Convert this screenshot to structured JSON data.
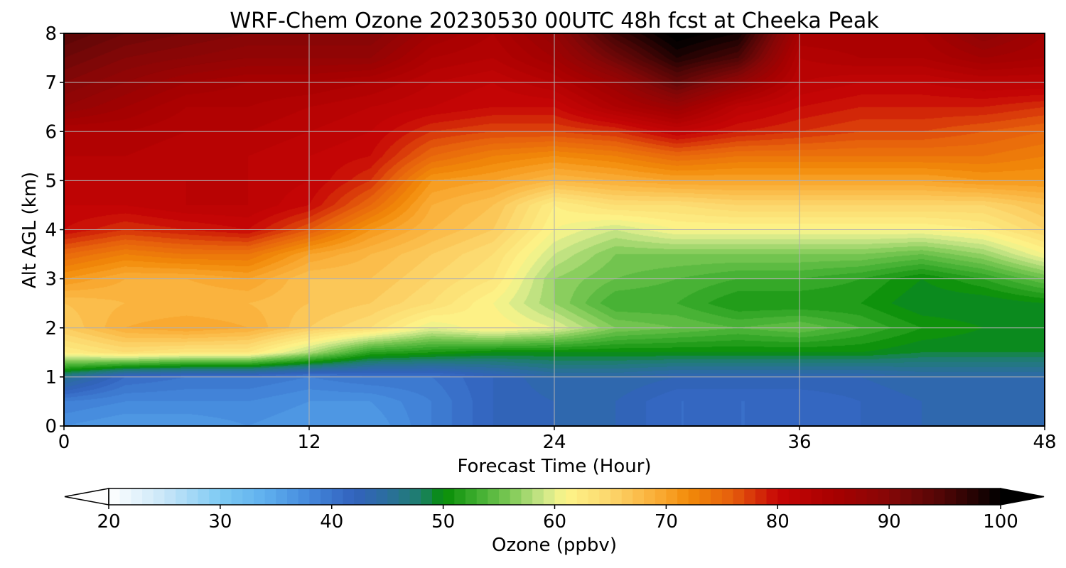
{
  "chart_data": {
    "type": "heatmap",
    "title": "WRF-Chem Ozone  20230530 00UTC 48h fcst at Cheeka Peak",
    "xlabel": "Forecast Time (Hour)",
    "ylabel": "Alt AGL (km)",
    "xlim": [
      0,
      48
    ],
    "ylim": [
      0,
      8
    ],
    "xticks": [
      0,
      12,
      24,
      36,
      48
    ],
    "yticks": [
      0,
      1,
      2,
      3,
      4,
      5,
      6,
      7,
      8
    ],
    "grid": true,
    "x_hours": [
      0,
      3,
      6,
      9,
      12,
      15,
      18,
      21,
      24,
      27,
      30,
      33,
      36,
      39,
      42,
      45,
      48
    ],
    "y_km": [
      0,
      0.5,
      1,
      1.5,
      2,
      2.5,
      3,
      3.5,
      4,
      4.5,
      5,
      5.5,
      6,
      6.5,
      7,
      7.5,
      8
    ],
    "z_rows_ppbv": [
      [
        37,
        36,
        36,
        37,
        36,
        36,
        39,
        42,
        43,
        43,
        41,
        41,
        41,
        42,
        43,
        43,
        43
      ],
      [
        39,
        38,
        38,
        38,
        37,
        37,
        39,
        42,
        43,
        43,
        41,
        41,
        41,
        42,
        43,
        43,
        43
      ],
      [
        46,
        41,
        40,
        40,
        39,
        40,
        40,
        42,
        44,
        44,
        43,
        43,
        43,
        43,
        44,
        44,
        44
      ],
      [
        62,
        64,
        63,
        63,
        58,
        52,
        51,
        50,
        50,
        50,
        50,
        50,
        50,
        50,
        49,
        49,
        49
      ],
      [
        66,
        69,
        70,
        69,
        66,
        64,
        60,
        62,
        60,
        56,
        55,
        54,
        55,
        53,
        51,
        50,
        50
      ],
      [
        67,
        68,
        68,
        68,
        67,
        66,
        64,
        61,
        57,
        53,
        53,
        51,
        51,
        51,
        49,
        49,
        50
      ],
      [
        71,
        69,
        69,
        70,
        67,
        67,
        65,
        63,
        57,
        55,
        54,
        53,
        53,
        52,
        50,
        52,
        55
      ],
      [
        75,
        73,
        74,
        74,
        70,
        68,
        66,
        64,
        59,
        56,
        56,
        56,
        56,
        56,
        55,
        57,
        61
      ],
      [
        80,
        78,
        79,
        80,
        76,
        71,
        68,
        66,
        61,
        59,
        61,
        61,
        61,
        61,
        61,
        62,
        65
      ],
      [
        81,
        81,
        82,
        82,
        80,
        75,
        69,
        67,
        62,
        64,
        64,
        65,
        65,
        65,
        65,
        65,
        67
      ],
      [
        82,
        82,
        82,
        82,
        81,
        78,
        71,
        70,
        68,
        69,
        70,
        70,
        70,
        70,
        70,
        71,
        71
      ],
      [
        83,
        83,
        82,
        82,
        81,
        80,
        75,
        73,
        72,
        73,
        75,
        74,
        74,
        74,
        74,
        74,
        73
      ],
      [
        84,
        84,
        83,
        83,
        82,
        81,
        78,
        77,
        77,
        78,
        81,
        79,
        78,
        77,
        77,
        76,
        75
      ],
      [
        88,
        86,
        84,
        84,
        83,
        82,
        81,
        80,
        80,
        84,
        87,
        82,
        80,
        79,
        79,
        79,
        78
      ],
      [
        90,
        88,
        86,
        85,
        85,
        84,
        82,
        81,
        83,
        87,
        93,
        88,
        82,
        81,
        81,
        82,
        82
      ],
      [
        92,
        90,
        89,
        88,
        88,
        88,
        84,
        83,
        86,
        92,
        98,
        95,
        83,
        84,
        84,
        86,
        85
      ],
      [
        94,
        92,
        91,
        90,
        90,
        90,
        86,
        84,
        88,
        96,
        101,
        99,
        85,
        85,
        85,
        89,
        86
      ]
    ],
    "colorbar": {
      "label": "Ozone  (ppbv)",
      "min": 20,
      "max": 100,
      "ticks": [
        20,
        30,
        40,
        50,
        60,
        70,
        80,
        90,
        100
      ],
      "extend": "both",
      "anchors": [
        {
          "v": 20,
          "c": "#ffffff"
        },
        {
          "v": 25,
          "c": "#c8e6f8"
        },
        {
          "v": 30,
          "c": "#7ecaf3"
        },
        {
          "v": 34,
          "c": "#5fb0ee"
        },
        {
          "v": 38,
          "c": "#4488dc"
        },
        {
          "v": 42,
          "c": "#3262bd"
        },
        {
          "v": 45,
          "c": "#2b6e9e"
        },
        {
          "v": 48,
          "c": "#1d7f6a"
        },
        {
          "v": 50,
          "c": "#058d05"
        },
        {
          "v": 53,
          "c": "#3ead2f"
        },
        {
          "v": 56,
          "c": "#7cc955"
        },
        {
          "v": 59,
          "c": "#cde78a"
        },
        {
          "v": 61,
          "c": "#fdf58a"
        },
        {
          "v": 65,
          "c": "#fcd66c"
        },
        {
          "v": 70,
          "c": "#f9a42a"
        },
        {
          "v": 72,
          "c": "#f28b08"
        },
        {
          "v": 76,
          "c": "#e55d0c"
        },
        {
          "v": 80,
          "c": "#c70606"
        },
        {
          "v": 85,
          "c": "#a80000"
        },
        {
          "v": 90,
          "c": "#850707"
        },
        {
          "v": 95,
          "c": "#4d0606"
        },
        {
          "v": 100,
          "c": "#000000"
        }
      ]
    }
  }
}
